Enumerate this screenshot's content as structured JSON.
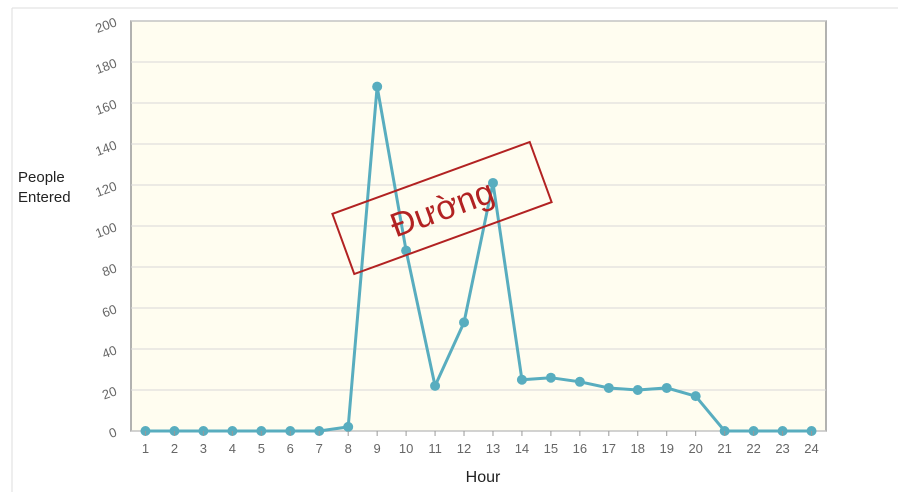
{
  "chart_data": {
    "type": "line",
    "x_label": "Hour",
    "y_label": "People Entered",
    "stamp": "Đường",
    "categories": [
      "1",
      "2",
      "3",
      "4",
      "5",
      "6",
      "7",
      "8",
      "9",
      "10",
      "11",
      "12",
      "13",
      "14",
      "15",
      "16",
      "17",
      "18",
      "19",
      "20",
      "21",
      "22",
      "23",
      "24"
    ],
    "series": [
      {
        "name": "People Entered",
        "color": "#58adbf",
        "values": [
          0,
          0,
          0,
          0,
          0,
          0,
          0,
          2,
          168,
          88,
          22,
          53,
          121,
          25,
          26,
          24,
          21,
          20,
          21,
          17,
          0,
          0,
          0,
          0
        ]
      }
    ],
    "ylim": [
      0,
      200
    ],
    "yticks": [
      0,
      20,
      40,
      60,
      80,
      100,
      120,
      140,
      160,
      180,
      200
    ],
    "grid": true
  }
}
